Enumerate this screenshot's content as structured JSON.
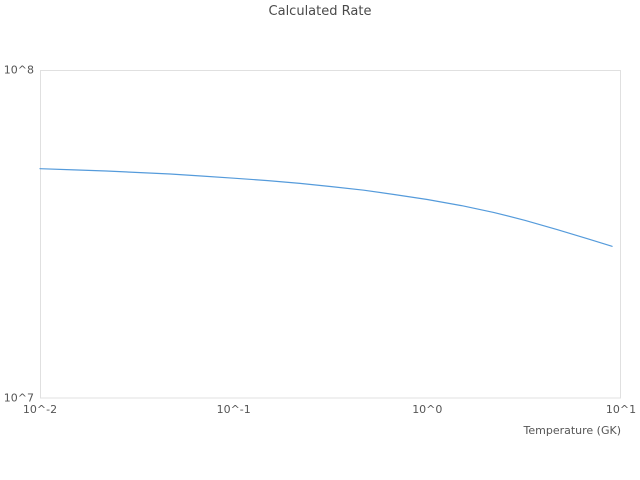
{
  "chart_data": {
    "type": "line",
    "title": "Calculated Rate",
    "xlabel": "Temperature (GK)",
    "ylabel": "",
    "x_scale": "log",
    "y_scale": "log",
    "xlim": [
      0.01,
      10
    ],
    "ylim": [
      10000000.0,
      100000000.0
    ],
    "grid": "outer-frame-only",
    "legend": "none",
    "x_ticks": [
      {
        "t": 0.01,
        "label": "10^-2"
      },
      {
        "t": 0.1,
        "label": "10^-1"
      },
      {
        "t": 1,
        "label": "10^0"
      },
      {
        "t": 10,
        "label": "10^1"
      }
    ],
    "y_ticks": [
      {
        "v": 10000000.0,
        "label": "10^7"
      },
      {
        "v": 100000000.0,
        "label": "10^8"
      }
    ],
    "series": [
      {
        "name": "Calculated Rate",
        "points": [
          [
            0.01,
            50000000.0
          ],
          [
            0.015,
            49600000.0
          ],
          [
            0.022,
            49200000.0
          ],
          [
            0.032,
            48700000.0
          ],
          [
            0.047,
            48200000.0
          ],
          [
            0.068,
            47500000.0
          ],
          [
            0.1,
            46800000.0
          ],
          [
            0.15,
            46000000.0
          ],
          [
            0.22,
            45100000.0
          ],
          [
            0.32,
            44100000.0
          ],
          [
            0.47,
            43000000.0
          ],
          [
            0.68,
            41700000.0
          ],
          [
            1.0,
            40300000.0
          ],
          [
            1.5,
            38600000.0
          ],
          [
            2.2,
            36800000.0
          ],
          [
            3.2,
            34800000.0
          ],
          [
            4.7,
            32600000.0
          ],
          [
            6.8,
            30500000.0
          ],
          [
            9.0,
            29000000.0
          ]
        ]
      }
    ]
  },
  "colors": {
    "line": "#559bdb",
    "frame": "#e0e0e0",
    "tick_text": "#555555",
    "title_text": "#4a4a4a",
    "background": "#ffffff"
  }
}
